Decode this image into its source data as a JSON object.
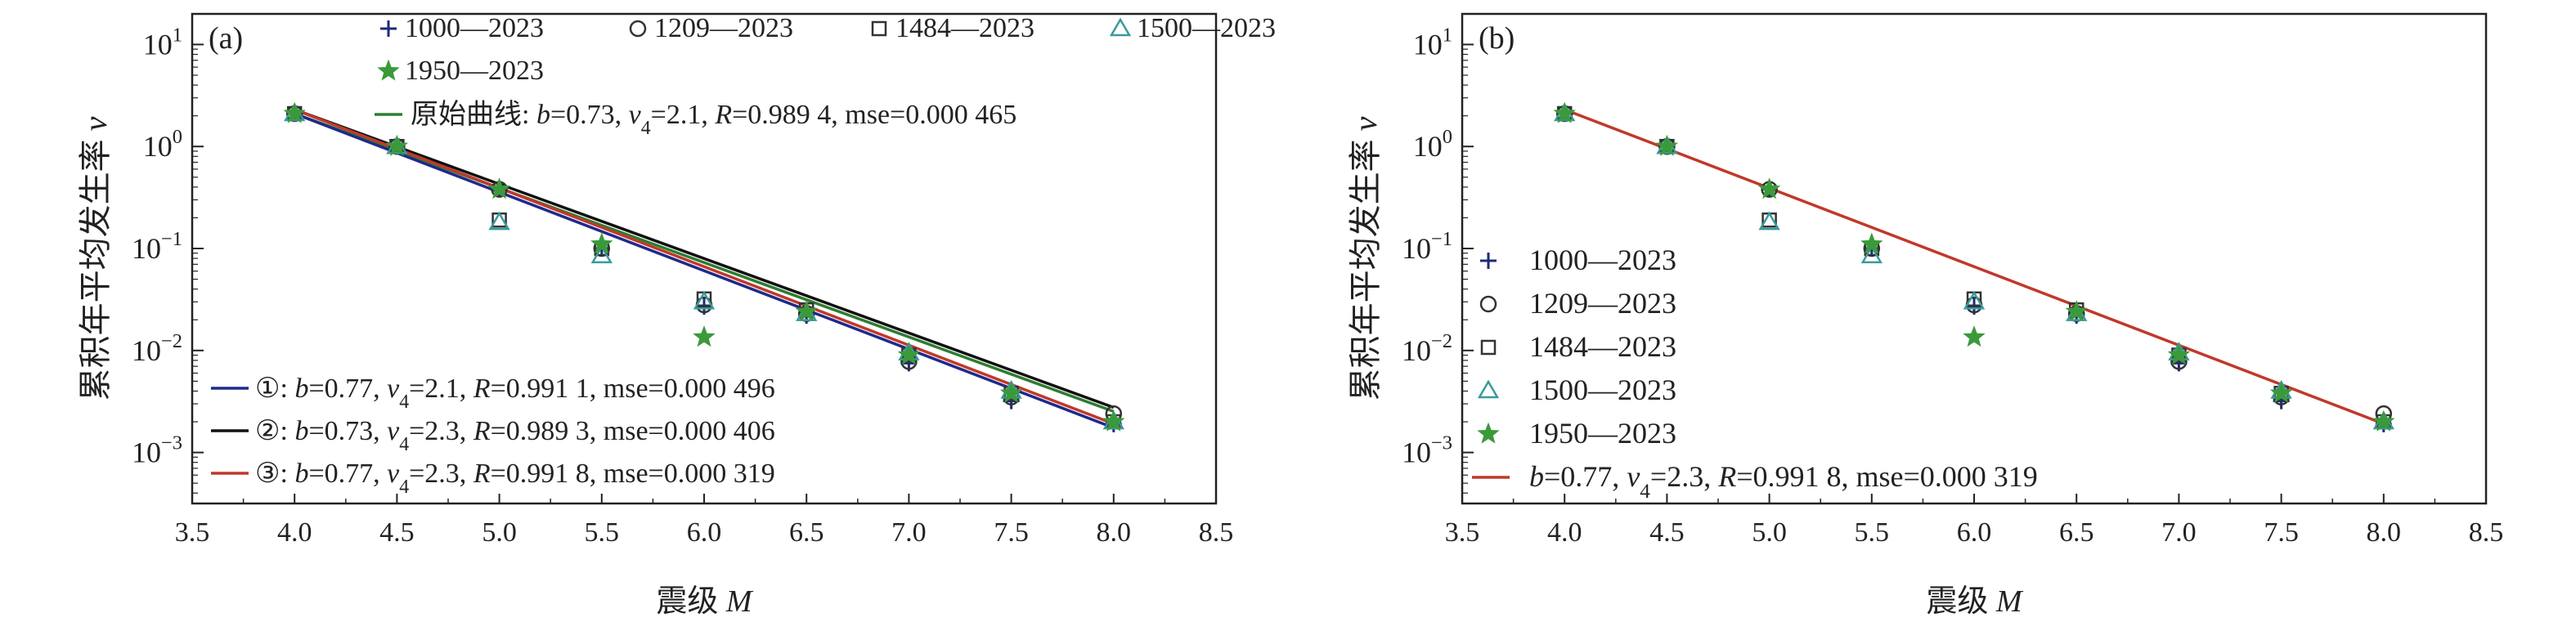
{
  "chart_data": [
    {
      "type": "scatter",
      "panel_label": "(a)",
      "xlabel_cn": "震级",
      "xlabel_var": "M",
      "ylabel_cn": "累积年平均发生率",
      "ylabel_var": "v",
      "xlim": [
        3.5,
        8.5
      ],
      "xticks": [
        "3.5",
        "4.0",
        "4.5",
        "5.0",
        "5.5",
        "6.0",
        "6.5",
        "7.0",
        "7.5",
        "8.0",
        "8.5"
      ],
      "ylim_log10": [
        -3.5,
        1.3
      ],
      "ytick_exponents": [
        "1",
        "0",
        "-1",
        "-2",
        "-3"
      ],
      "x": [
        4.0,
        4.5,
        5.0,
        5.5,
        6.0,
        6.5,
        7.0,
        7.5,
        8.0
      ],
      "series": [
        {
          "name": "1000—2023",
          "marker": "plus",
          "color": "#1e2a7a",
          "values": [
            2.1,
            1.0,
            0.38,
            0.1,
            0.027,
            0.022,
            0.0075,
            0.0032,
            0.0019
          ]
        },
        {
          "name": "1209—2023",
          "marker": "circle",
          "color": "#333333",
          "values": [
            2.1,
            1.0,
            0.38,
            0.1,
            0.028,
            0.023,
            0.0078,
            0.0035,
            0.0024
          ]
        },
        {
          "name": "1484—2023",
          "marker": "square",
          "color": "#333333",
          "values": [
            2.1,
            1.0,
            0.19,
            0.1,
            0.032,
            0.025,
            0.009,
            0.0038,
            0.002
          ]
        },
        {
          "name": "1500—2023",
          "marker": "triangle",
          "color": "#3a9a9a",
          "values": [
            2.1,
            1.0,
            0.18,
            0.085,
            0.03,
            0.023,
            0.0095,
            0.004,
            0.002
          ]
        },
        {
          "name": "1950—2023",
          "marker": "star",
          "color": "#3a9a3a",
          "values": [
            2.1,
            1.0,
            0.38,
            0.11,
            0.0135,
            0.024,
            0.009,
            0.0038,
            0.002
          ]
        }
      ],
      "lines": [
        {
          "label_prefix": "原始曲线",
          "b": "0.73",
          "v4": "2.1",
          "R": "0.989 4",
          "mse": "0.000 465",
          "color": "#2e7d32",
          "slope": -0.73,
          "v_at_4": 2.1
        },
        {
          "label_prefix": "①",
          "b": "0.77",
          "v4": "2.1",
          "R": "0.991 1",
          "mse": "0.000 496",
          "color": "#1f2a8a",
          "slope": -0.77,
          "v_at_4": 2.1
        },
        {
          "label_prefix": "②",
          "b": "0.73",
          "v4": "2.3",
          "R": "0.989 3",
          "mse": "0.000 406",
          "color": "#111111",
          "slope": -0.73,
          "v_at_4": 2.3
        },
        {
          "label_prefix": "③",
          "b": "0.77",
          "v4": "2.3",
          "R": "0.991 8",
          "mse": "0.000 319",
          "color": "#c0392b",
          "slope": -0.77,
          "v_at_4": 2.3
        }
      ]
    },
    {
      "type": "scatter",
      "panel_label": "(b)",
      "xlabel_cn": "震级",
      "xlabel_var": "M",
      "ylabel_cn": "累积年平均发生率",
      "ylabel_var": "v",
      "xlim": [
        3.5,
        8.5
      ],
      "xticks": [
        "3.5",
        "4.0",
        "4.5",
        "5.0",
        "5.5",
        "6.0",
        "6.5",
        "7.0",
        "7.5",
        "8.0",
        "8.5"
      ],
      "ylim_log10": [
        -3.5,
        1.3
      ],
      "ytick_exponents": [
        "1",
        "0",
        "-1",
        "-2",
        "-3"
      ],
      "x": [
        4.0,
        4.5,
        5.0,
        5.5,
        6.0,
        6.5,
        7.0,
        7.5,
        8.0
      ],
      "series": [
        {
          "name": "1000—2023",
          "marker": "plus",
          "color": "#1e2a7a",
          "values": [
            2.1,
            1.0,
            0.38,
            0.1,
            0.027,
            0.022,
            0.0075,
            0.0032,
            0.0019
          ]
        },
        {
          "name": "1209—2023",
          "marker": "circle",
          "color": "#333333",
          "values": [
            2.1,
            1.0,
            0.38,
            0.1,
            0.028,
            0.023,
            0.0078,
            0.0035,
            0.0024
          ]
        },
        {
          "name": "1484—2023",
          "marker": "square",
          "color": "#333333",
          "values": [
            2.1,
            1.0,
            0.19,
            0.1,
            0.032,
            0.025,
            0.009,
            0.0038,
            0.002
          ]
        },
        {
          "name": "1500—2023",
          "marker": "triangle",
          "color": "#3a9a9a",
          "values": [
            2.1,
            1.0,
            0.18,
            0.085,
            0.03,
            0.023,
            0.0095,
            0.004,
            0.002
          ]
        },
        {
          "name": "1950—2023",
          "marker": "star",
          "color": "#3a9a3a",
          "values": [
            2.1,
            1.0,
            0.38,
            0.11,
            0.0135,
            0.024,
            0.009,
            0.0038,
            0.002
          ]
        }
      ],
      "lines": [
        {
          "label_prefix": "",
          "b": "0.77",
          "v4": "2.3",
          "R": "0.991 8",
          "mse": "0.000 319",
          "color": "#c0392b",
          "slope": -0.77,
          "v_at_4": 2.3
        }
      ]
    }
  ]
}
